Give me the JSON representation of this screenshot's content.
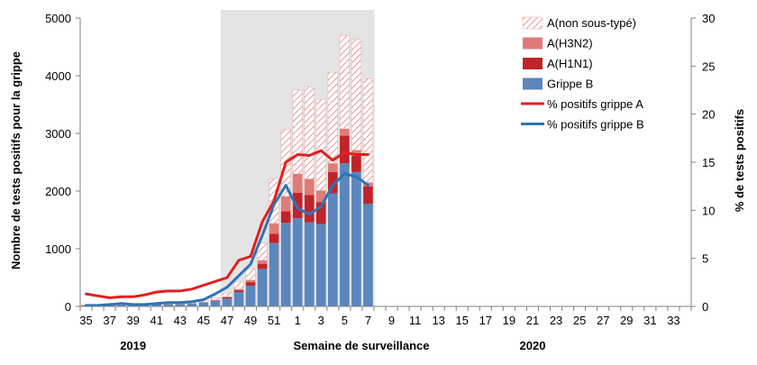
{
  "chart_data": {
    "type": "bar",
    "stacked": true,
    "xlabel": "Semaine de surveillance",
    "ylabel": "Nombre de tests positifs pour la grippe",
    "y2label": "% de tests positifs",
    "ylim": [
      0,
      5000
    ],
    "y2lim": [
      0,
      30
    ],
    "yticks": [
      0,
      1000,
      2000,
      3000,
      4000,
      5000
    ],
    "y2ticks": [
      0,
      5,
      10,
      15,
      20,
      25,
      30
    ],
    "year_labels": [
      {
        "label": "2019",
        "week": "39"
      },
      {
        "label": "2020",
        "week": "21"
      }
    ],
    "categories": [
      "35",
      "36",
      "37",
      "38",
      "39",
      "40",
      "41",
      "42",
      "43",
      "44",
      "45",
      "46",
      "47",
      "48",
      "49",
      "50",
      "51",
      "52",
      "1",
      "2",
      "3",
      "4",
      "5",
      "6",
      "7",
      "8",
      "9",
      "10",
      "11",
      "12",
      "13",
      "14",
      "15",
      "16",
      "17",
      "18",
      "19",
      "20",
      "21",
      "22",
      "23",
      "24",
      "25",
      "26",
      "27",
      "28",
      "29",
      "30",
      "31",
      "32",
      "33",
      "34"
    ],
    "tick_labels": [
      "35",
      "37",
      "39",
      "41",
      "43",
      "45",
      "47",
      "49",
      "51",
      "1",
      "3",
      "5",
      "7",
      "9",
      "11",
      "13",
      "15",
      "17",
      "19",
      "21",
      "23",
      "25",
      "27",
      "29",
      "31",
      "33"
    ],
    "highlight_range": [
      "47",
      "7"
    ],
    "series": [
      {
        "name": "A(non sous-typé)",
        "kind": "bar",
        "pattern": "hatch",
        "color": "#d9827f",
        "values": [
          5,
          5,
          5,
          8,
          10,
          12,
          15,
          18,
          22,
          25,
          30,
          40,
          60,
          130,
          190,
          300,
          770,
          1150,
          1450,
          1600,
          1580,
          1580,
          1620,
          1920,
          1800,
          null,
          null,
          null,
          null,
          null,
          null,
          null,
          null,
          null,
          null,
          null,
          null,
          null,
          null,
          null,
          null,
          null,
          null,
          null,
          null,
          null,
          null,
          null,
          null,
          null,
          null,
          null
        ]
      },
      {
        "name": "A(H3N2)",
        "kind": "bar",
        "color": "#e07b78",
        "values": [
          0,
          0,
          0,
          0,
          0,
          0,
          0,
          0,
          0,
          0,
          0,
          5,
          10,
          20,
          40,
          60,
          180,
          260,
          330,
          280,
          200,
          150,
          120,
          100,
          70,
          null,
          null,
          null,
          null,
          null,
          null,
          null,
          null,
          null,
          null,
          null,
          null,
          null,
          null,
          null,
          null,
          null,
          null,
          null,
          null,
          null,
          null,
          null,
          null,
          null,
          null,
          null
        ]
      },
      {
        "name": "A(H1N1)",
        "kind": "bar",
        "color": "#c0242a",
        "values": [
          0,
          0,
          0,
          0,
          0,
          0,
          0,
          0,
          0,
          0,
          5,
          10,
          20,
          30,
          60,
          90,
          160,
          200,
          440,
          470,
          380,
          370,
          480,
          280,
          300,
          null,
          null,
          null,
          null,
          null,
          null,
          null,
          null,
          null,
          null,
          null,
          null,
          null,
          null,
          null,
          null,
          null,
          null,
          null,
          null,
          null,
          null,
          null,
          null,
          null,
          null,
          null
        ]
      },
      {
        "name": "Grippe B",
        "kind": "bar",
        "color": "#5b86be",
        "values": [
          20,
          15,
          20,
          25,
          20,
          25,
          35,
          40,
          45,
          55,
          70,
          95,
          140,
          250,
          360,
          650,
          1100,
          1450,
          1530,
          1460,
          1430,
          1960,
          2480,
          2330,
          1780,
          null,
          null,
          null,
          null,
          null,
          null,
          null,
          null,
          null,
          null,
          null,
          null,
          null,
          null,
          null,
          null,
          null,
          null,
          null,
          null,
          null,
          null,
          null,
          null,
          null,
          null,
          null
        ]
      },
      {
        "name": "% positifs grippe A",
        "kind": "line",
        "axis": "y2",
        "color": "#e02020",
        "values": [
          1.3,
          1.1,
          0.9,
          1.0,
          1.0,
          1.2,
          1.5,
          1.6,
          1.6,
          1.8,
          2.2,
          2.6,
          3.0,
          4.8,
          5.2,
          8.8,
          11.0,
          15.0,
          15.8,
          15.7,
          16.2,
          15.2,
          16.0,
          15.8,
          15.8,
          null,
          null,
          null,
          null,
          null,
          null,
          null,
          null,
          null,
          null,
          null,
          null,
          null,
          null,
          null,
          null,
          null,
          null,
          null,
          null,
          null,
          null,
          null,
          null,
          null,
          null,
          null
        ]
      },
      {
        "name": "% positifs grippe B",
        "kind": "line",
        "axis": "y2",
        "color": "#2e73b6",
        "values": [
          0.1,
          0.1,
          0.2,
          0.3,
          0.2,
          0.2,
          0.3,
          0.4,
          0.4,
          0.5,
          0.7,
          1.3,
          2.0,
          3.2,
          4.4,
          7.4,
          10.6,
          12.6,
          10.2,
          9.6,
          10.4,
          12.6,
          13.8,
          13.5,
          12.6,
          null,
          null,
          null,
          null,
          null,
          null,
          null,
          null,
          null,
          null,
          null,
          null,
          null,
          null,
          null,
          null,
          null,
          null,
          null,
          null,
          null,
          null,
          null,
          null,
          null,
          null,
          null
        ]
      }
    ],
    "legend": {
      "position": "top-right"
    },
    "grid": false
  }
}
